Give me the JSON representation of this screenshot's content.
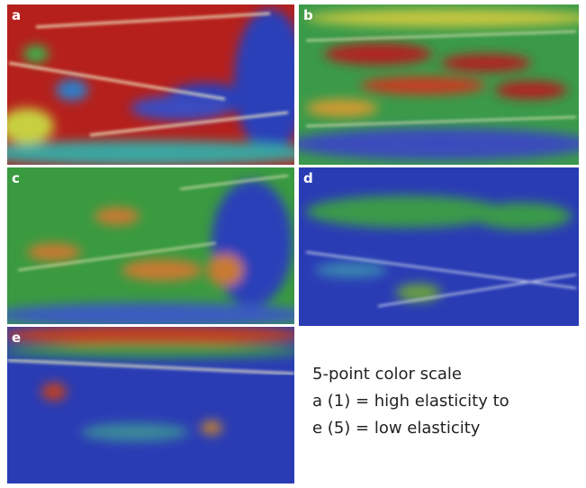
{
  "panels": [
    {
      "label": "a"
    },
    {
      "label": "b"
    },
    {
      "label": "c"
    },
    {
      "label": "d"
    },
    {
      "label": "e"
    }
  ],
  "caption": {
    "lines": [
      "5-point color scale",
      "a (1) = high elasticity to",
      "e (5) = low elasticity"
    ]
  }
}
